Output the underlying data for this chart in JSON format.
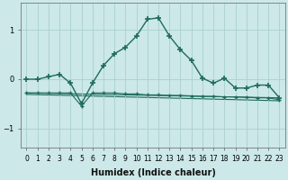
{
  "xlabel": "Humidex (Indice chaleur)",
  "bg_color": "#cce8e8",
  "line_color": "#1e6b5e",
  "grid_color": "#aacfcf",
  "xlim": [
    -0.5,
    23.5
  ],
  "ylim": [
    -1.4,
    1.55
  ],
  "yticks": [
    -1,
    0,
    1
  ],
  "xticks": [
    0,
    1,
    2,
    3,
    4,
    5,
    6,
    7,
    8,
    9,
    10,
    11,
    12,
    13,
    14,
    15,
    16,
    17,
    18,
    19,
    20,
    21,
    22,
    23
  ],
  "main_line_x": [
    0,
    1,
    2,
    3,
    4,
    5,
    6,
    7,
    8,
    9,
    10,
    11,
    12,
    13,
    14,
    15,
    16,
    17,
    18,
    19,
    20,
    21,
    22,
    23
  ],
  "main_line_y": [
    0.0,
    0.0,
    0.05,
    0.1,
    -0.08,
    -0.5,
    -0.08,
    0.28,
    0.52,
    0.65,
    0.88,
    1.22,
    1.25,
    0.88,
    0.6,
    0.38,
    0.02,
    -0.08,
    0.02,
    -0.18,
    -0.18,
    -0.12,
    -0.12,
    -0.38
  ],
  "scatter_line_x": [
    0,
    1,
    2,
    3,
    4,
    5,
    6,
    7,
    8,
    9,
    10,
    11,
    12,
    13,
    14,
    15,
    16,
    17,
    18,
    19,
    20,
    21,
    22,
    23
  ],
  "scatter_line_y": [
    -0.28,
    -0.28,
    -0.28,
    -0.28,
    -0.28,
    -0.55,
    -0.28,
    -0.28,
    -0.28,
    -0.3,
    -0.3,
    -0.32,
    -0.32,
    -0.33,
    -0.33,
    -0.34,
    -0.35,
    -0.35,
    -0.36,
    -0.36,
    -0.37,
    -0.38,
    -0.38,
    -0.42
  ],
  "reg_line1_x": [
    0,
    23
  ],
  "reg_line1_y": [
    -0.28,
    -0.38
  ],
  "reg_line2_x": [
    0,
    23
  ],
  "reg_line2_y": [
    -0.31,
    -0.44
  ]
}
